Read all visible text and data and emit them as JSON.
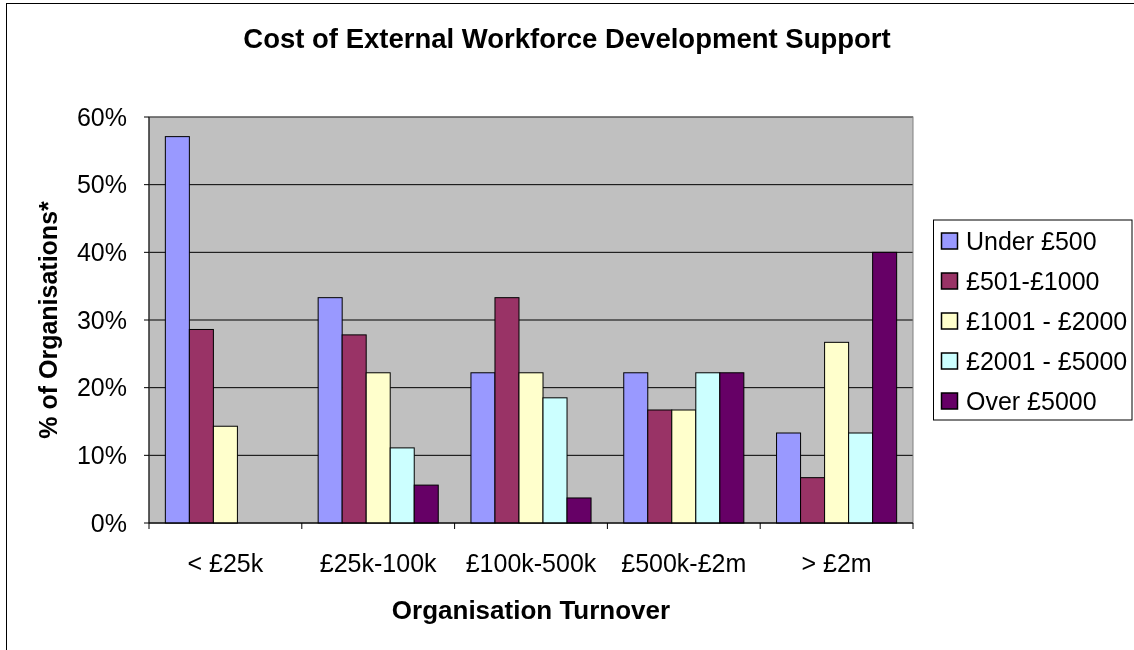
{
  "chart_data": {
    "type": "bar",
    "title": "Cost of External Workforce Development Support",
    "xlabel": "Organisation Turnover",
    "ylabel": "% of Organisations*",
    "categories": [
      "< £25k",
      "£25k-100k",
      "£100k-500k",
      "£500k-£2m",
      "> £2m"
    ],
    "series": [
      {
        "name": "Under £500",
        "color": "#9999ff",
        "values": [
          57.1,
          33.3,
          22.2,
          22.2,
          13.3
        ]
      },
      {
        "name": "£501-£1000",
        "color": "#993366",
        "values": [
          28.6,
          27.8,
          33.3,
          16.7,
          6.7
        ]
      },
      {
        "name": "£1001 - £2000",
        "color": "#ffffcc",
        "values": [
          14.3,
          22.2,
          22.2,
          16.7,
          26.7
        ]
      },
      {
        "name": "£2001 - £5000",
        "color": "#ccffff",
        "values": [
          null,
          11.1,
          18.5,
          22.2,
          13.3
        ]
      },
      {
        "name": "Over £5000",
        "color": "#660066",
        "values": [
          null,
          5.6,
          3.7,
          22.2,
          40
        ]
      }
    ],
    "ylim": [
      0,
      60
    ],
    "yticks": [
      {
        "value": 0,
        "label": "0%"
      },
      {
        "value": 10,
        "label": "10%"
      },
      {
        "value": 20,
        "label": "20%"
      },
      {
        "value": 30,
        "label": "30%"
      },
      {
        "value": 40,
        "label": "40%"
      },
      {
        "value": 50,
        "label": "50%"
      },
      {
        "value": 60,
        "label": "60%"
      }
    ],
    "grid": "y",
    "legend": "right"
  }
}
